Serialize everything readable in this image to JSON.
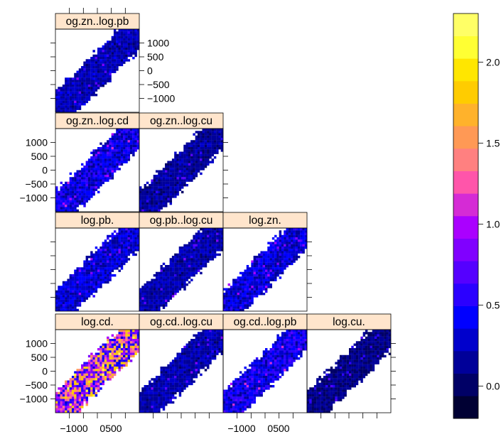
{
  "chart_data": {
    "type": "heatmap",
    "title": "",
    "xlabel": "",
    "ylabel": "",
    "lag_range": [
      -1500,
      1500
    ],
    "panels": [
      {
        "label": "og.zn..log.pb",
        "row": 0,
        "col": 0,
        "level": 0.3
      },
      {
        "label": "og.zn..log.cd",
        "row": 1,
        "col": 0,
        "level": 0.45
      },
      {
        "label": "og.zn..log.cu",
        "row": 1,
        "col": 1,
        "level": 0.22
      },
      {
        "label": "log.pb.",
        "row": 2,
        "col": 0,
        "level": 0.4
      },
      {
        "label": "og.pb..log.cu",
        "row": 2,
        "col": 1,
        "level": 0.28
      },
      {
        "label": "log.zn.",
        "row": 2,
        "col": 2,
        "level": 0.42
      },
      {
        "label": "log.cd.",
        "row": 3,
        "col": 0,
        "level": 1.35
      },
      {
        "label": "og.cd..log.cu",
        "row": 3,
        "col": 1,
        "level": 0.28
      },
      {
        "label": "og.cd..log.pb",
        "row": 3,
        "col": 2,
        "level": 0.5
      },
      {
        "label": "log.cu.",
        "row": 3,
        "col": 3,
        "level": 0.15
      }
    ],
    "y_ticks": [
      {
        "value": 1000,
        "label": "1000"
      },
      {
        "value": 500,
        "label": "500"
      },
      {
        "value": 0,
        "label": "0"
      },
      {
        "value": -500,
        "label": "−500"
      },
      {
        "value": -1000,
        "label": "−1000"
      }
    ],
    "x_tick_labels": [
      "−1000",
      "0500"
    ],
    "colorkey": {
      "range": [
        -0.2,
        2.3
      ],
      "ticks": [
        {
          "value": 0.0,
          "label": "0.0"
        },
        {
          "value": 0.5,
          "label": "0.5"
        },
        {
          "value": 1.0,
          "label": "1.0"
        },
        {
          "value": 1.5,
          "label": "1.5"
        },
        {
          "value": 2.0,
          "label": "2.0"
        }
      ],
      "colors": [
        "#000033",
        "#000066",
        "#000099",
        "#0000CC",
        "#0000FF",
        "#2B00FF",
        "#5500FF",
        "#8000FF",
        "#AA00FF",
        "#D52BD5",
        "#FF55AA",
        "#FF8080",
        "#FF9955",
        "#FFB22B",
        "#FFCC00",
        "#FFE600",
        "#FFFF33",
        "#FFFF66"
      ]
    }
  }
}
